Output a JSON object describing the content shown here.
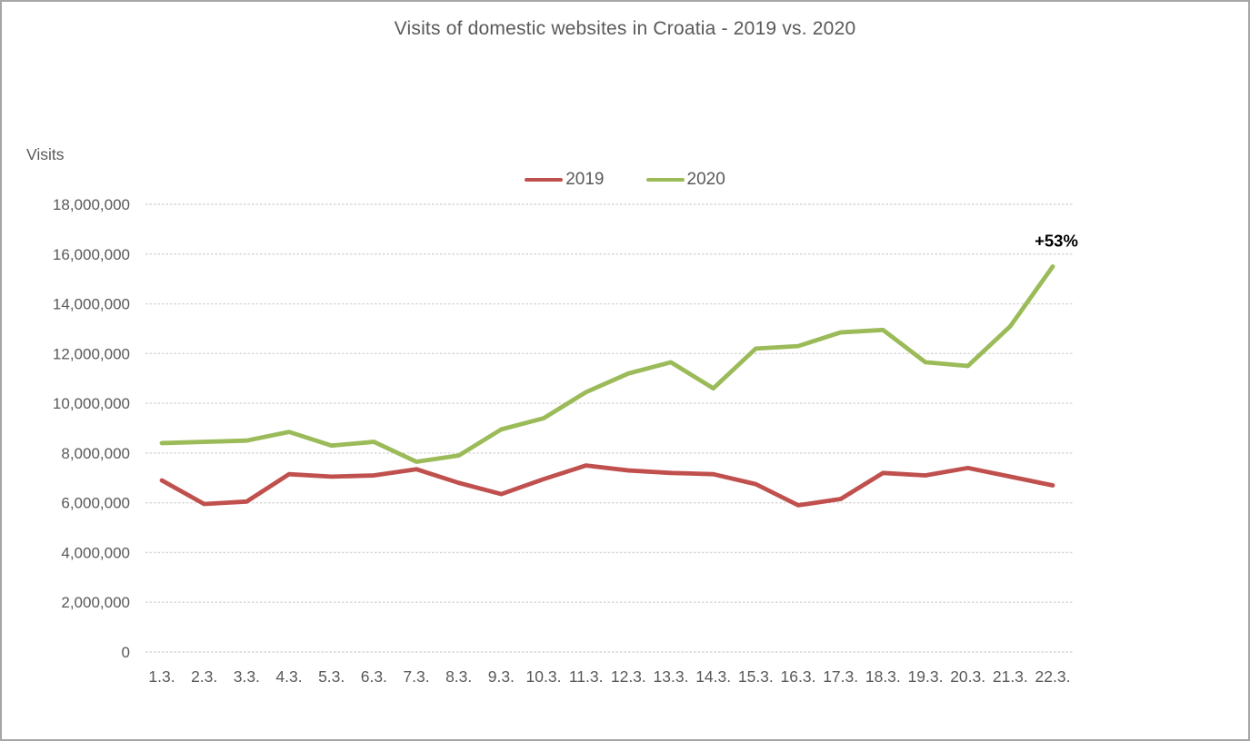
{
  "title": "Visits of domestic websites in Croatia - 2019 vs. 2020",
  "y_axis_title": "Visits",
  "legend": [
    {
      "label": "2019",
      "color": "#c0504d"
    },
    {
      "label": "2020",
      "color": "#9bbb59"
    }
  ],
  "colors": {
    "series_2019": "#c0504d",
    "series_2020": "#9bbb59",
    "gridline": "#d6d6d6",
    "tick_text": "#595959",
    "annotation_text": "#000000"
  },
  "chart_data": {
    "type": "line",
    "categories": [
      "1.3.",
      "2.3.",
      "3.3.",
      "4.3.",
      "5.3.",
      "6.3.",
      "7.3.",
      "8.3.",
      "9.3.",
      "10.3.",
      "11.3.",
      "12.3.",
      "13.3.",
      "14.3.",
      "15.3.",
      "16.3.",
      "17.3.",
      "18.3.",
      "19.3.",
      "20.3.",
      "21.3.",
      "22.3."
    ],
    "series": [
      {
        "name": "2019",
        "color": "#c0504d",
        "values": [
          6900000,
          5950000,
          6050000,
          7150000,
          7050000,
          7100000,
          7350000,
          6800000,
          6350000,
          6950000,
          7500000,
          7300000,
          7200000,
          7150000,
          6750000,
          5900000,
          6150000,
          7200000,
          7100000,
          7400000,
          7050000,
          6700000
        ]
      },
      {
        "name": "2020",
        "color": "#9bbb59",
        "values": [
          8400000,
          8450000,
          8500000,
          8850000,
          8300000,
          8450000,
          7650000,
          7900000,
          8950000,
          9400000,
          10450000,
          11200000,
          11650000,
          10600000,
          12200000,
          12300000,
          12850000,
          12950000,
          11650000,
          11500000,
          13100000,
          15500000
        ]
      }
    ],
    "title": "Visits of domestic websites in Croatia - 2019 vs. 2020",
    "xlabel": "",
    "ylabel": "Visits",
    "ylim": [
      0,
      18000000
    ],
    "y_tick_step": 2000000,
    "y_tick_labels": [
      "0",
      "2,000,000",
      "4,000,000",
      "6,000,000",
      "8,000,000",
      "10,000,000",
      "12,000,000",
      "14,000,000",
      "16,000,000",
      "18,000,000"
    ],
    "grid": true,
    "legend_position": "top-center",
    "annotation": {
      "text": "+53%",
      "series": "2020",
      "point_index": 21
    }
  }
}
